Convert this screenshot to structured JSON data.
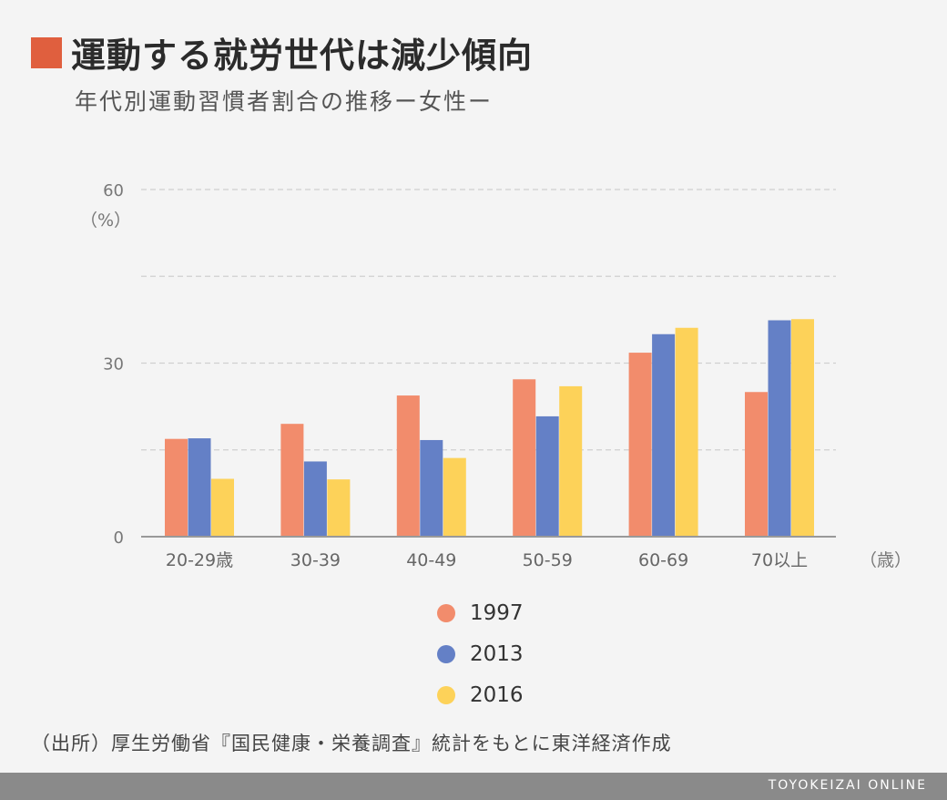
{
  "header": {
    "title": "運動する就労世代は減少傾向",
    "subtitle": "年代別運動習慣者割合の推移ー女性ー"
  },
  "chart_data": {
    "type": "bar",
    "categories": [
      "20-29歳",
      "30-39",
      "40-49",
      "50-59",
      "60-69",
      "70以上"
    ],
    "series": [
      {
        "name": "1997",
        "color": "#f28c6c",
        "values": [
          16.9,
          19.5,
          24.4,
          27.2,
          31.8,
          25.0
        ]
      },
      {
        "name": "2013",
        "color": "#6480c6",
        "values": [
          17.0,
          13.0,
          16.7,
          20.8,
          35.0,
          37.4
        ]
      },
      {
        "name": "2016",
        "color": "#fdd259",
        "values": [
          10.0,
          9.9,
          13.6,
          26.0,
          36.1,
          37.6
        ]
      }
    ],
    "ylim": [
      0,
      60
    ],
    "yticks": [
      0,
      30,
      60
    ],
    "gridlines": [
      15,
      30,
      45,
      60
    ],
    "ylabel": "（%）",
    "xunit": "（歳）",
    "legend_position": "bottom"
  },
  "source": "（出所）厚生労働省『国民健康・栄養調査』統計をもとに東洋経済作成",
  "footer": {
    "brand": "TOYOKEIZAI ONLINE"
  }
}
